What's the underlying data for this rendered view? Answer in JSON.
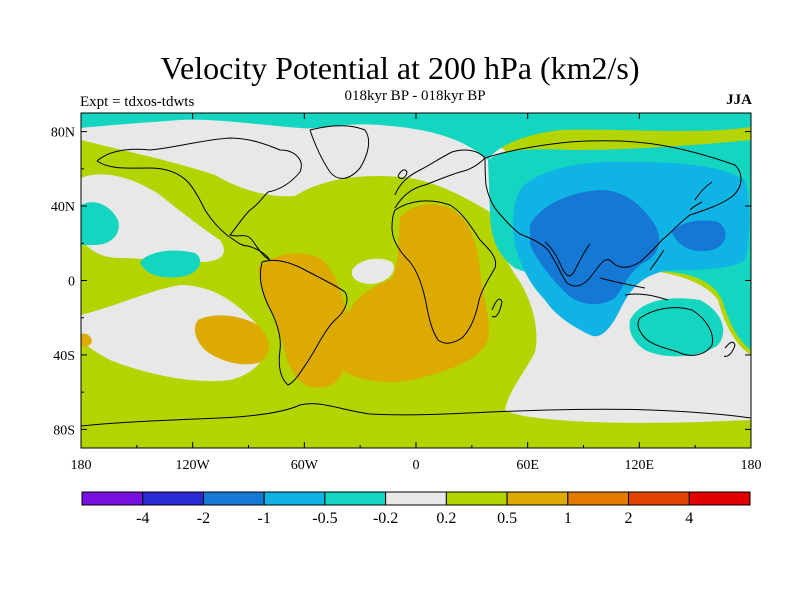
{
  "header": {
    "title": "Velocity Potential at 200 hPa (km2/s)",
    "subtitle": "018kyr BP - 018kyr BP",
    "experiment": "Expt = tdxos-tdwts",
    "season": "JJA"
  },
  "map": {
    "projection": "cylindrical equidistant",
    "lon_range": [
      -180,
      180
    ],
    "lat_range": [
      -90,
      90
    ],
    "lat_ticks": [
      {
        "value": 80,
        "label": "80N"
      },
      {
        "value": 40,
        "label": "40N"
      },
      {
        "value": 0,
        "label": "0"
      },
      {
        "value": -40,
        "label": "40S"
      },
      {
        "value": -80,
        "label": "80S"
      }
    ],
    "lon_ticks": [
      {
        "value": -180,
        "label": "180"
      },
      {
        "value": -120,
        "label": "120W"
      },
      {
        "value": -60,
        "label": "60W"
      },
      {
        "value": 0,
        "label": "0"
      },
      {
        "value": 60,
        "label": "60E"
      },
      {
        "value": 120,
        "label": "120E"
      },
      {
        "value": 180,
        "label": "180"
      }
    ],
    "background_level": "0.2 to 0.5",
    "colors": {
      "lt_-4": "#7a10e0",
      "-4_-2": "#2a2ad4",
      "-2_-1": "#1478d4",
      "-1_-0.5": "#10b4e4",
      "-0.5_-0.2": "#14d6c0",
      "-0.2_0.2": "#e8e8e8",
      "0.2_0.5": "#b4d400",
      "0.5_1": "#dcaa00",
      "1_2": "#e27a00",
      "2_4": "#e24400",
      "gt_4": "#e00000"
    }
  },
  "colorbar": {
    "colors": [
      "#7a10e0",
      "#2a2ad4",
      "#1478d4",
      "#10b4e4",
      "#14d6c0",
      "#e8e8e8",
      "#b4d400",
      "#dcaa00",
      "#e27a00",
      "#e24400",
      "#e00000"
    ],
    "labels": [
      "-4",
      "-2",
      "-1",
      "-0.5",
      "-0.2",
      "0.2",
      "0.5",
      "1",
      "2",
      "4"
    ]
  }
}
